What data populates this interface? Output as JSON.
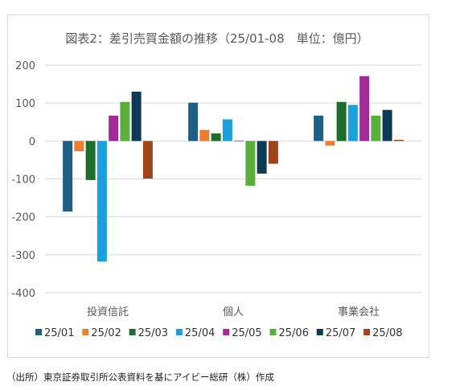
{
  "title": "図表2：差引売買金額の推移（25/01-08　単位：億円）",
  "source": "（出所）東京証券取引所公表資料を基にアイビー総研（株）作成",
  "chart_data": {
    "type": "bar",
    "title": "図表2：差引売買金額の推移（25/01-08　単位：億円）",
    "categories": [
      "投資信託",
      "個人",
      "事業会社"
    ],
    "ylim": [
      -400,
      200
    ],
    "yticks": [
      200,
      100,
      0,
      -100,
      -200,
      -300,
      -400
    ],
    "grid": true,
    "legend_position": "bottom",
    "series": [
      {
        "name": "25/01",
        "color": "#1f5f86",
        "values": [
          -186,
          101,
          67
        ]
      },
      {
        "name": "25/02",
        "color": "#ed7d31",
        "values": [
          -27,
          29,
          -12
        ]
      },
      {
        "name": "25/03",
        "color": "#1b6e2b",
        "values": [
          -103,
          20,
          103
        ]
      },
      {
        "name": "25/04",
        "color": "#1aa0dc",
        "values": [
          -318,
          57,
          95
        ]
      },
      {
        "name": "25/05",
        "color": "#a12a97",
        "values": [
          67,
          1,
          171
        ]
      },
      {
        "name": "25/06",
        "color": "#5bad3c",
        "values": [
          103,
          -118,
          67
        ]
      },
      {
        "name": "25/07",
        "color": "#0f3a55",
        "values": [
          130,
          -86,
          82
        ]
      },
      {
        "name": "25/08",
        "color": "#a0441b",
        "values": [
          -99,
          -60,
          3
        ]
      }
    ]
  }
}
